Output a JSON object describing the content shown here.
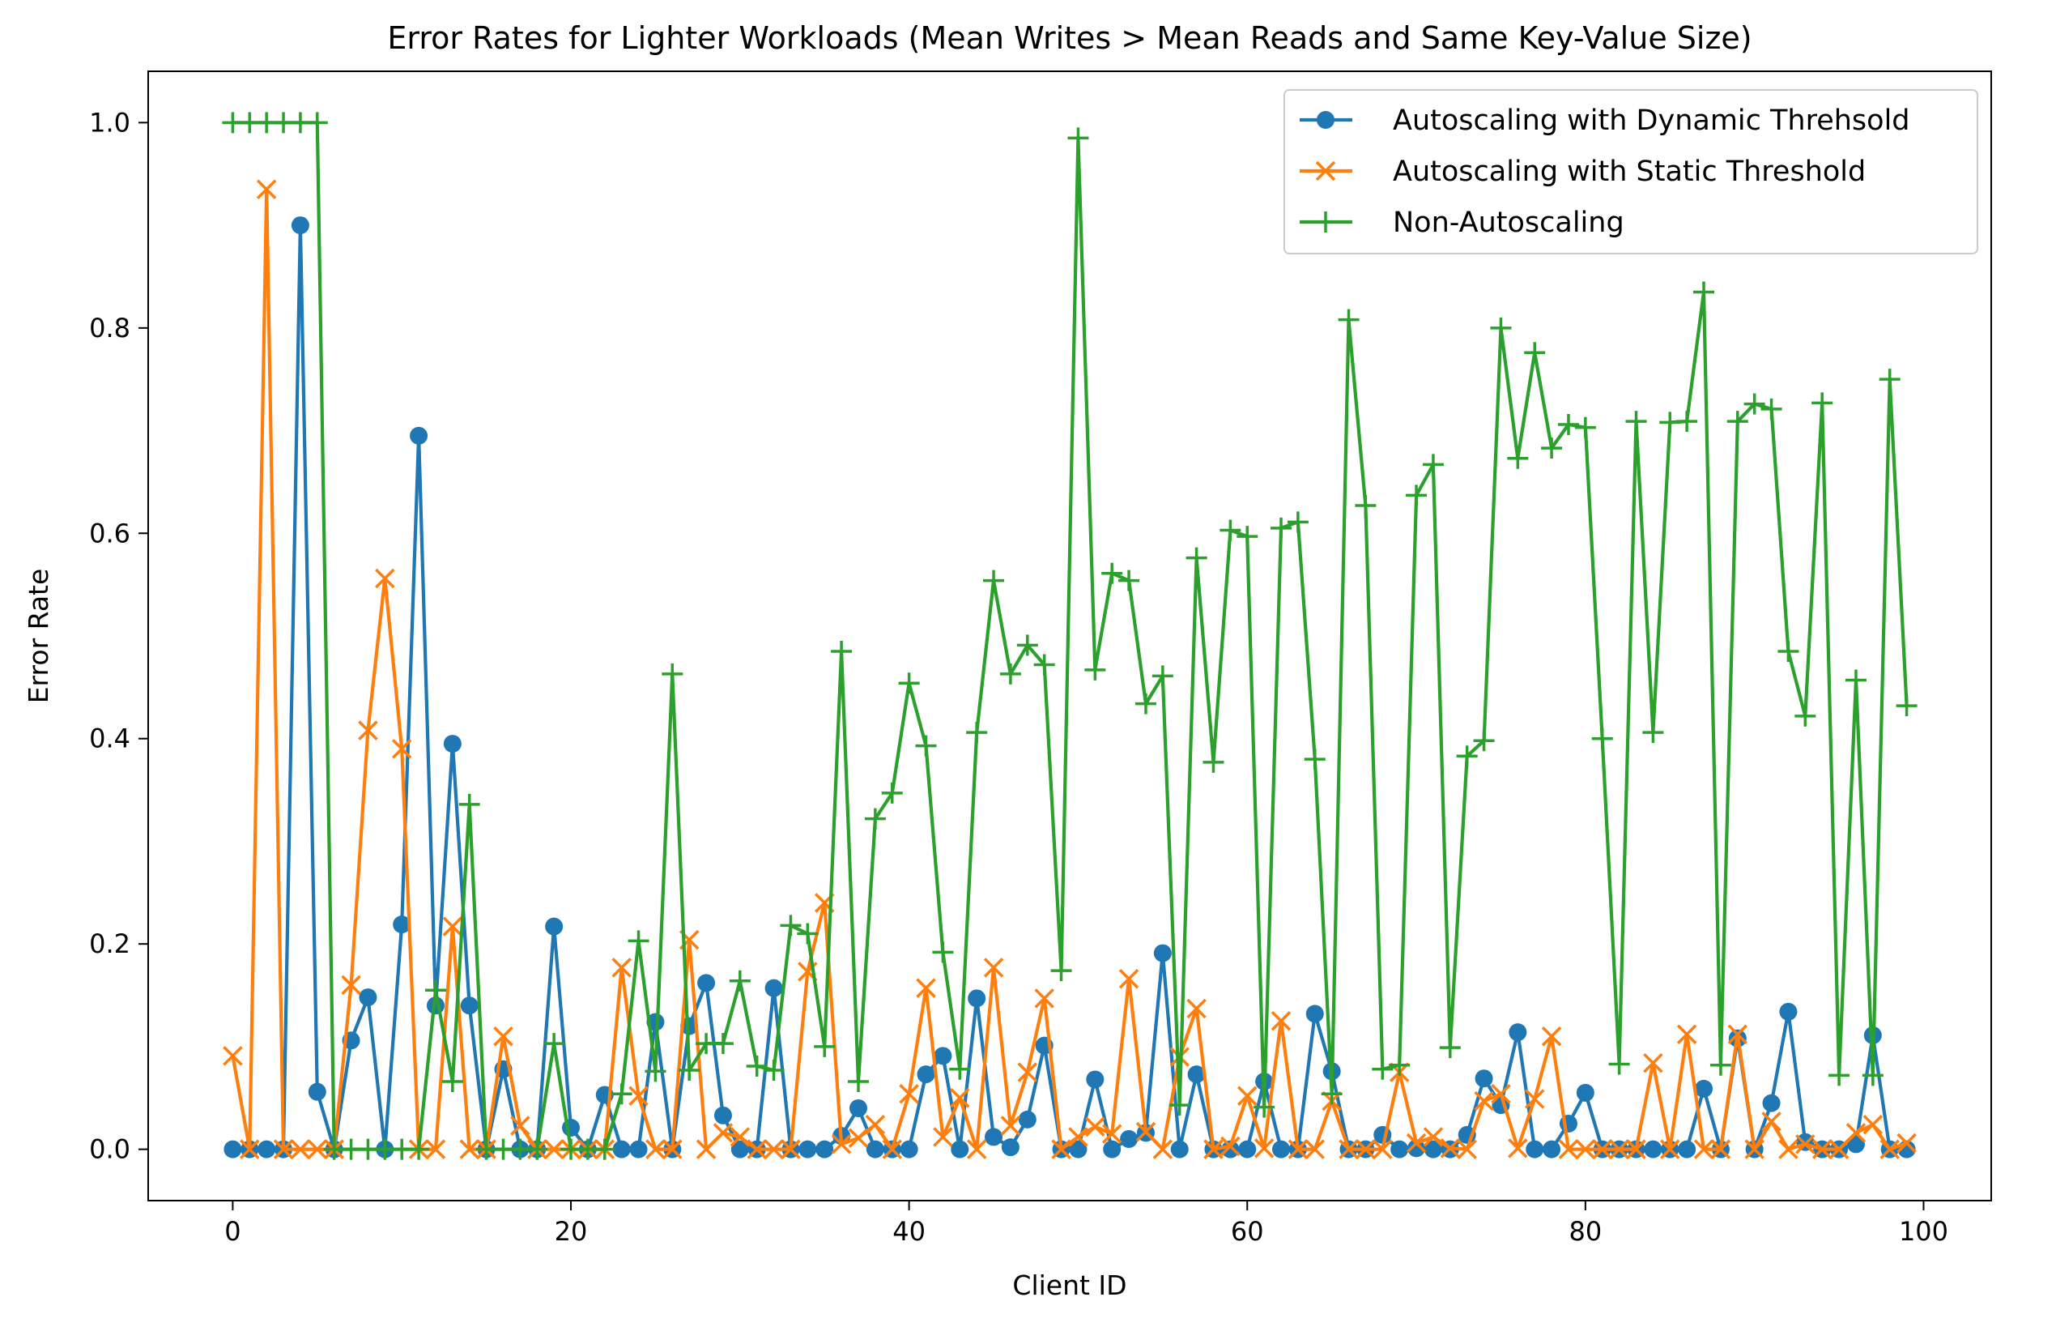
{
  "chart_data": {
    "type": "line",
    "title": "Error Rates for Lighter Workloads (Mean Writes > Mean Reads and Same Key-Value Size)",
    "xlabel": "Client ID",
    "ylabel": "Error Rate",
    "xlim": [
      -5,
      104
    ],
    "ylim": [
      -0.05,
      1.05
    ],
    "xticks": [
      0,
      20,
      40,
      60,
      80,
      100
    ],
    "yticks": [
      0.0,
      0.2,
      0.4,
      0.6,
      0.8,
      1.0
    ],
    "xtick_labels": [
      "0",
      "20",
      "40",
      "60",
      "80",
      "100"
    ],
    "ytick_labels": [
      "0.0",
      "0.2",
      "0.4",
      "0.6",
      "0.8",
      "1.0"
    ],
    "grid": false,
    "legend_position": "top-right",
    "x": [
      0,
      1,
      2,
      3,
      4,
      5,
      6,
      7,
      8,
      9,
      10,
      11,
      12,
      13,
      14,
      15,
      16,
      17,
      18,
      19,
      20,
      21,
      22,
      23,
      24,
      25,
      26,
      27,
      28,
      29,
      30,
      31,
      32,
      33,
      34,
      35,
      36,
      37,
      38,
      39,
      40,
      41,
      42,
      43,
      44,
      45,
      46,
      47,
      48,
      49,
      50,
      51,
      52,
      53,
      54,
      55,
      56,
      57,
      58,
      59,
      60,
      61,
      62,
      63,
      64,
      65,
      66,
      67,
      68,
      69,
      70,
      71,
      72,
      73,
      74,
      75,
      76,
      77,
      78,
      79,
      80,
      81,
      82,
      83,
      84,
      85,
      86,
      87,
      88,
      89,
      90,
      91,
      92,
      93,
      94,
      95,
      96,
      97,
      98,
      99
    ],
    "series": [
      {
        "name": "Autoscaling with Dynamic Threhsold",
        "color": "#1f77b4",
        "marker": "circle",
        "values": [
          0,
          0,
          0,
          0,
          0.9,
          0.056,
          0,
          0.106,
          0.148,
          0,
          0.219,
          0.695,
          0.14,
          0.395,
          0.14,
          0,
          0.078,
          0,
          0,
          0.217,
          0.021,
          0,
          0.053,
          0,
          0,
          0.124,
          0,
          0.12,
          0.162,
          0.033,
          0,
          0,
          0.157,
          0,
          0,
          0,
          0.013,
          0.04,
          0,
          0,
          0,
          0.073,
          0.091,
          0,
          0.147,
          0.012,
          0.002,
          0.029,
          0.101,
          0,
          0,
          0.068,
          0,
          0.01,
          0.016,
          0.191,
          0,
          0.073,
          0,
          0,
          0,
          0.066,
          0,
          0,
          0.132,
          0.076,
          0,
          0,
          0.014,
          0,
          0.001,
          0,
          0,
          0.014,
          0.069,
          0.043,
          0.114,
          0,
          0,
          0.025,
          0.055,
          0,
          0,
          0,
          0,
          0,
          0,
          0.059,
          0,
          0.108,
          0,
          0.045,
          0.134,
          0.007,
          0,
          0,
          0.005,
          0.111,
          0,
          0
        ]
      },
      {
        "name": "Autoscaling with Static Threshold",
        "color": "#ff7f0e",
        "marker": "x",
        "values": [
          0.091,
          0,
          0.935,
          0,
          0,
          0,
          0,
          0.16,
          0.408,
          0.556,
          0.39,
          0,
          0,
          0.217,
          0,
          0,
          0.11,
          0.023,
          0,
          0,
          0,
          0,
          0,
          0.177,
          0.052,
          0,
          0,
          0.204,
          0,
          0.016,
          0.012,
          0,
          0,
          0,
          0.173,
          0.24,
          0.005,
          0.011,
          0.024,
          0,
          0.054,
          0.157,
          0.012,
          0.05,
          0,
          0.177,
          0.023,
          0.075,
          0.147,
          0,
          0.012,
          0.022,
          0.015,
          0.166,
          0.017,
          0,
          0.09,
          0.137,
          0,
          0.003,
          0.052,
          0.001,
          0.125,
          0,
          0,
          0.047,
          0,
          0,
          0,
          0.075,
          0.006,
          0.012,
          0.001,
          0,
          0.047,
          0.054,
          0.001,
          0.049,
          0.11,
          0,
          0,
          0,
          0,
          0,
          0.084,
          0,
          0.112,
          0,
          0,
          0.112,
          0,
          0.027,
          0,
          0.005,
          0,
          0,
          0.016,
          0.024,
          0,
          0.006
        ]
      },
      {
        "name": "Non-Autoscaling",
        "color": "#2ca02c",
        "marker": "plus",
        "values": [
          1,
          1,
          1,
          1,
          1,
          1,
          0,
          0,
          0,
          0,
          0,
          0,
          0.155,
          0.066,
          0.336,
          0,
          0,
          0,
          0,
          0.103,
          0,
          0,
          0,
          0.054,
          0.203,
          0.076,
          0.463,
          0.077,
          0.103,
          0.103,
          0.164,
          0.081,
          0.077,
          0.218,
          0.21,
          0.1,
          0.485,
          0.066,
          0.322,
          0.347,
          0.454,
          0.393,
          0.192,
          0.078,
          0.406,
          0.554,
          0.463,
          0.491,
          0.472,
          0.174,
          0.985,
          0.467,
          0.561,
          0.554,
          0.434,
          0.461,
          0.043,
          0.576,
          0.377,
          0.603,
          0.597,
          0.041,
          0.605,
          0.611,
          0.38,
          0.054,
          0.808,
          0.627,
          0.078,
          0.082,
          0.637,
          0.667,
          0.099,
          0.383,
          0.398,
          0.8,
          0.673,
          0.776,
          0.683,
          0.706,
          0.703,
          0.4,
          0.083,
          0.709,
          0.406,
          0.708,
          0.709,
          0.835,
          0.082,
          0.709,
          0.726,
          0.721,
          0.485,
          0.422,
          0.727,
          0.072,
          0.457,
          0.072,
          0.75,
          0.432
        ]
      }
    ]
  }
}
